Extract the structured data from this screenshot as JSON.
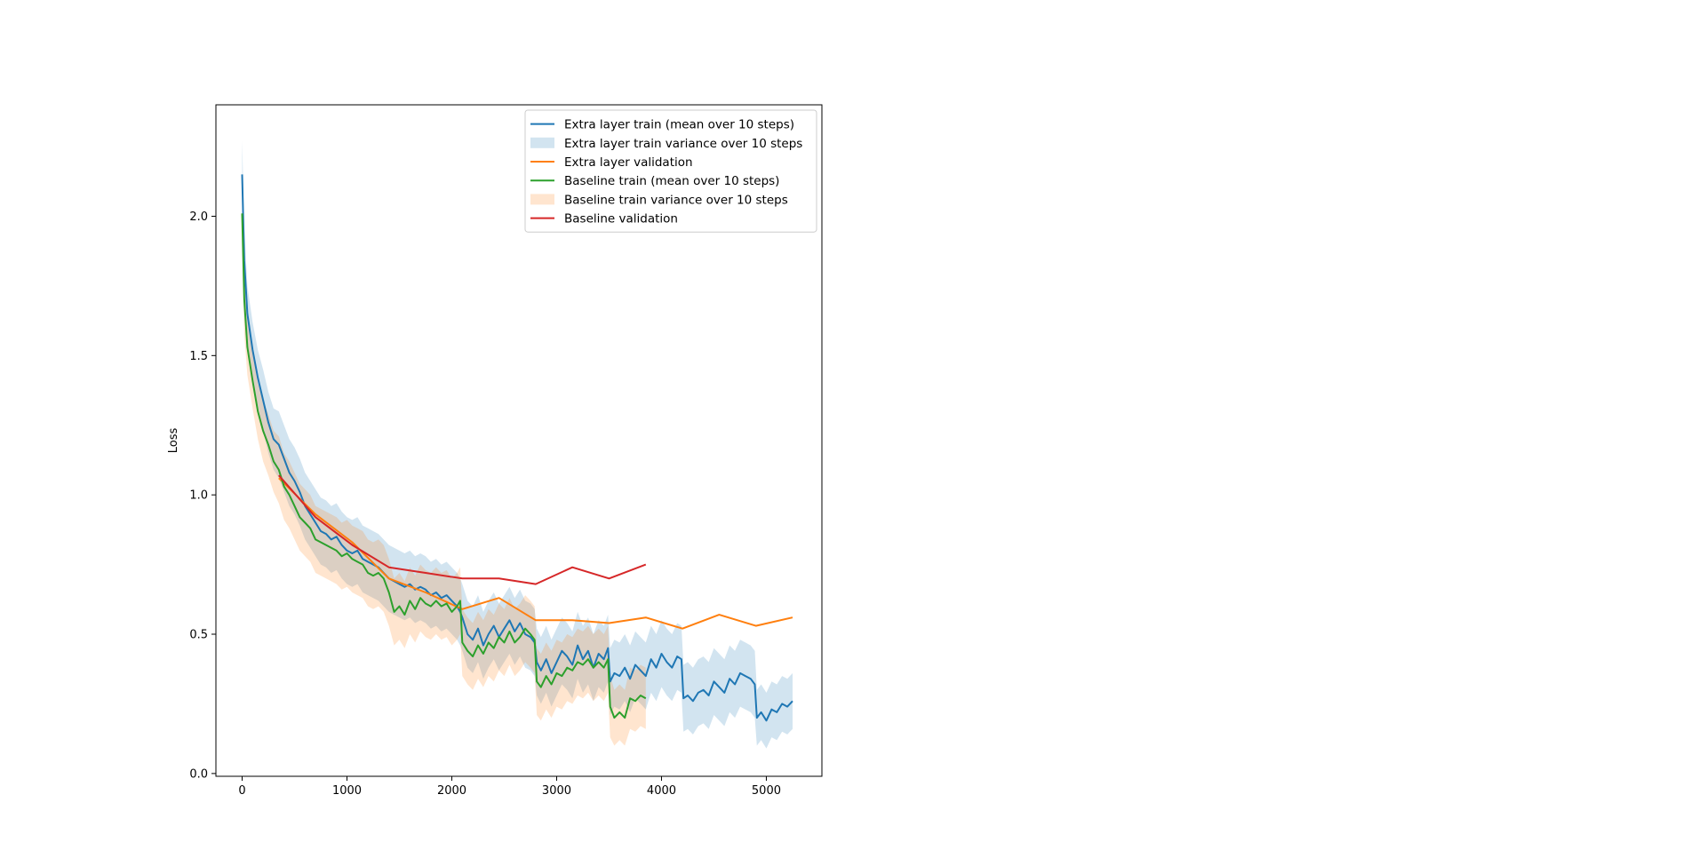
{
  "chart_data": {
    "type": "line",
    "title": "",
    "xlabel": "",
    "ylabel": "Loss",
    "xlim": [
      -250,
      5530
    ],
    "ylim": [
      -0.01,
      2.4
    ],
    "xticks": [
      0,
      1000,
      2000,
      3000,
      4000,
      5000
    ],
    "xtick_labels": [
      "0",
      "1000",
      "2000",
      "3000",
      "4000",
      "5000"
    ],
    "yticks": [
      0.0,
      0.5,
      1.0,
      1.5,
      2.0
    ],
    "ytick_labels": [
      "0.0",
      "0.5",
      "1.0",
      "1.5",
      "2.0"
    ],
    "grid": false,
    "legend_position": "top-right",
    "series": [
      {
        "name": "Extra layer train (mean over 10 steps)",
        "kind": "line",
        "color": "#1f77b4",
        "x": [
          0,
          20,
          50,
          100,
          150,
          200,
          250,
          300,
          350,
          400,
          450,
          500,
          550,
          600,
          650,
          700,
          750,
          800,
          850,
          900,
          950,
          1000,
          1050,
          1100,
          1150,
          1200,
          1250,
          1300,
          1350,
          1400,
          1450,
          1500,
          1550,
          1600,
          1650,
          1700,
          1750,
          1800,
          1850,
          1900,
          1950,
          2000,
          2050,
          2080,
          2100,
          2150,
          2200,
          2250,
          2300,
          2350,
          2400,
          2450,
          2500,
          2550,
          2600,
          2650,
          2700,
          2750,
          2790,
          2810,
          2850,
          2900,
          2950,
          3000,
          3050,
          3100,
          3150,
          3200,
          3250,
          3300,
          3350,
          3400,
          3450,
          3490,
          3510,
          3550,
          3600,
          3650,
          3700,
          3750,
          3800,
          3850,
          3900,
          3950,
          4000,
          4050,
          4100,
          4150,
          4190,
          4210,
          4250,
          4300,
          4350,
          4400,
          4450,
          4500,
          4550,
          4600,
          4650,
          4700,
          4750,
          4800,
          4850,
          4890,
          4910,
          4950,
          5000,
          5050,
          5100,
          5150,
          5200,
          5250
        ],
        "y": [
          2.15,
          1.84,
          1.65,
          1.52,
          1.42,
          1.34,
          1.26,
          1.2,
          1.18,
          1.13,
          1.08,
          1.05,
          1.01,
          0.96,
          0.93,
          0.9,
          0.87,
          0.86,
          0.84,
          0.85,
          0.82,
          0.8,
          0.79,
          0.8,
          0.77,
          0.76,
          0.75,
          0.74,
          0.72,
          0.7,
          0.69,
          0.68,
          0.67,
          0.68,
          0.66,
          0.67,
          0.66,
          0.64,
          0.65,
          0.63,
          0.64,
          0.62,
          0.6,
          0.58,
          0.56,
          0.5,
          0.48,
          0.52,
          0.46,
          0.5,
          0.53,
          0.49,
          0.52,
          0.55,
          0.51,
          0.54,
          0.5,
          0.49,
          0.47,
          0.4,
          0.37,
          0.41,
          0.36,
          0.4,
          0.44,
          0.42,
          0.39,
          0.46,
          0.41,
          0.44,
          0.38,
          0.43,
          0.41,
          0.45,
          0.33,
          0.36,
          0.35,
          0.38,
          0.34,
          0.39,
          0.37,
          0.35,
          0.41,
          0.38,
          0.43,
          0.4,
          0.38,
          0.42,
          0.41,
          0.27,
          0.28,
          0.26,
          0.29,
          0.3,
          0.28,
          0.33,
          0.31,
          0.29,
          0.34,
          0.32,
          0.36,
          0.35,
          0.34,
          0.32,
          0.2,
          0.22,
          0.19,
          0.23,
          0.22,
          0.25,
          0.24,
          0.26
        ]
      },
      {
        "name": "Extra layer train variance over 10 steps",
        "kind": "band",
        "color": "#1f77b4",
        "opacity": 0.2,
        "x": [
          0,
          20,
          50,
          100,
          150,
          200,
          250,
          300,
          350,
          400,
          450,
          500,
          550,
          600,
          650,
          700,
          750,
          800,
          850,
          900,
          950,
          1000,
          1050,
          1100,
          1150,
          1200,
          1250,
          1300,
          1350,
          1400,
          1450,
          1500,
          1550,
          1600,
          1650,
          1700,
          1750,
          1800,
          1850,
          1900,
          1950,
          2000,
          2050,
          2080,
          2100,
          2150,
          2200,
          2250,
          2300,
          2350,
          2400,
          2450,
          2500,
          2550,
          2600,
          2650,
          2700,
          2750,
          2790,
          2810,
          2850,
          2900,
          2950,
          3000,
          3050,
          3100,
          3150,
          3200,
          3250,
          3300,
          3350,
          3400,
          3450,
          3490,
          3510,
          3550,
          3600,
          3650,
          3700,
          3750,
          3800,
          3850,
          3900,
          3950,
          4000,
          4050,
          4100,
          4150,
          4190,
          4210,
          4250,
          4300,
          4350,
          4400,
          4450,
          4500,
          4550,
          4600,
          4650,
          4700,
          4750,
          4800,
          4850,
          4890,
          4910,
          4950,
          5000,
          5050,
          5100,
          5150,
          5200,
          5250
        ],
        "lower": [
          2.03,
          1.72,
          1.55,
          1.42,
          1.32,
          1.23,
          1.15,
          1.09,
          1.06,
          1.01,
          0.96,
          0.93,
          0.89,
          0.84,
          0.81,
          0.78,
          0.75,
          0.74,
          0.72,
          0.73,
          0.7,
          0.68,
          0.67,
          0.68,
          0.65,
          0.64,
          0.63,
          0.62,
          0.6,
          0.58,
          0.57,
          0.56,
          0.55,
          0.56,
          0.54,
          0.55,
          0.54,
          0.52,
          0.53,
          0.51,
          0.52,
          0.5,
          0.48,
          0.46,
          0.44,
          0.38,
          0.36,
          0.4,
          0.34,
          0.38,
          0.41,
          0.37,
          0.4,
          0.43,
          0.39,
          0.42,
          0.38,
          0.37,
          0.35,
          0.28,
          0.25,
          0.29,
          0.24,
          0.28,
          0.32,
          0.3,
          0.27,
          0.34,
          0.29,
          0.32,
          0.26,
          0.31,
          0.29,
          0.33,
          0.21,
          0.24,
          0.23,
          0.26,
          0.22,
          0.27,
          0.25,
          0.23,
          0.29,
          0.26,
          0.31,
          0.28,
          0.26,
          0.3,
          0.29,
          0.15,
          0.16,
          0.14,
          0.17,
          0.18,
          0.16,
          0.21,
          0.19,
          0.17,
          0.22,
          0.2,
          0.24,
          0.23,
          0.22,
          0.2,
          0.1,
          0.12,
          0.09,
          0.13,
          0.12,
          0.15,
          0.14,
          0.16
        ],
        "upper": [
          2.27,
          1.96,
          1.75,
          1.62,
          1.52,
          1.45,
          1.37,
          1.31,
          1.3,
          1.25,
          1.2,
          1.17,
          1.13,
          1.08,
          1.05,
          1.02,
          0.99,
          0.98,
          0.96,
          0.97,
          0.94,
          0.92,
          0.91,
          0.92,
          0.89,
          0.88,
          0.87,
          0.86,
          0.84,
          0.82,
          0.81,
          0.8,
          0.79,
          0.8,
          0.78,
          0.79,
          0.78,
          0.76,
          0.77,
          0.75,
          0.76,
          0.74,
          0.72,
          0.7,
          0.68,
          0.62,
          0.6,
          0.64,
          0.58,
          0.62,
          0.65,
          0.61,
          0.64,
          0.67,
          0.63,
          0.66,
          0.62,
          0.61,
          0.59,
          0.52,
          0.49,
          0.53,
          0.48,
          0.52,
          0.56,
          0.54,
          0.51,
          0.58,
          0.53,
          0.56,
          0.5,
          0.55,
          0.53,
          0.57,
          0.45,
          0.48,
          0.47,
          0.5,
          0.46,
          0.51,
          0.49,
          0.47,
          0.53,
          0.5,
          0.55,
          0.52,
          0.5,
          0.54,
          0.53,
          0.39,
          0.4,
          0.38,
          0.41,
          0.42,
          0.4,
          0.45,
          0.43,
          0.41,
          0.46,
          0.44,
          0.48,
          0.47,
          0.46,
          0.44,
          0.3,
          0.32,
          0.29,
          0.33,
          0.32,
          0.35,
          0.34,
          0.36
        ]
      },
      {
        "name": "Extra layer validation",
        "kind": "line",
        "color": "#ff7f0e",
        "x": [
          350,
          700,
          1050,
          1400,
          1750,
          2100,
          2450,
          2800,
          3150,
          3500,
          3850,
          4200,
          4550,
          4900,
          5250
        ],
        "y": [
          1.06,
          0.93,
          0.83,
          0.7,
          0.65,
          0.59,
          0.63,
          0.55,
          0.55,
          0.54,
          0.56,
          0.52,
          0.57,
          0.53,
          0.56
        ]
      },
      {
        "name": "Baseline train (mean over 10 steps)",
        "kind": "line",
        "color": "#2ca02c",
        "x": [
          0,
          20,
          50,
          100,
          150,
          200,
          250,
          300,
          350,
          400,
          450,
          500,
          550,
          600,
          650,
          700,
          750,
          800,
          850,
          900,
          950,
          1000,
          1050,
          1100,
          1150,
          1200,
          1250,
          1300,
          1350,
          1400,
          1450,
          1500,
          1550,
          1600,
          1650,
          1700,
          1750,
          1800,
          1850,
          1900,
          1950,
          2000,
          2050,
          2080,
          2100,
          2150,
          2200,
          2250,
          2300,
          2350,
          2400,
          2450,
          2500,
          2550,
          2600,
          2650,
          2700,
          2750,
          2790,
          2810,
          2850,
          2900,
          2950,
          3000,
          3050,
          3100,
          3150,
          3200,
          3250,
          3300,
          3350,
          3400,
          3450,
          3490,
          3510,
          3550,
          3600,
          3650,
          3700,
          3750,
          3800,
          3850
        ],
        "y": [
          2.01,
          1.7,
          1.53,
          1.41,
          1.3,
          1.23,
          1.18,
          1.12,
          1.09,
          1.03,
          1.0,
          0.96,
          0.92,
          0.9,
          0.88,
          0.84,
          0.83,
          0.82,
          0.81,
          0.8,
          0.78,
          0.79,
          0.77,
          0.76,
          0.75,
          0.72,
          0.71,
          0.72,
          0.7,
          0.65,
          0.58,
          0.6,
          0.57,
          0.62,
          0.59,
          0.63,
          0.61,
          0.6,
          0.62,
          0.6,
          0.61,
          0.58,
          0.6,
          0.62,
          0.47,
          0.44,
          0.42,
          0.46,
          0.43,
          0.47,
          0.45,
          0.49,
          0.47,
          0.51,
          0.47,
          0.49,
          0.52,
          0.5,
          0.48,
          0.33,
          0.31,
          0.35,
          0.32,
          0.36,
          0.35,
          0.38,
          0.37,
          0.4,
          0.39,
          0.41,
          0.38,
          0.4,
          0.38,
          0.41,
          0.24,
          0.2,
          0.22,
          0.2,
          0.27,
          0.26,
          0.28,
          0.27
        ]
      },
      {
        "name": "Baseline train variance over 10 steps",
        "kind": "band",
        "color": "#ff7f0e",
        "opacity": 0.2,
        "x": [
          0,
          20,
          50,
          100,
          150,
          200,
          250,
          300,
          350,
          400,
          450,
          500,
          550,
          600,
          650,
          700,
          750,
          800,
          850,
          900,
          950,
          1000,
          1050,
          1100,
          1150,
          1200,
          1250,
          1300,
          1350,
          1400,
          1450,
          1500,
          1550,
          1600,
          1650,
          1700,
          1750,
          1800,
          1850,
          1900,
          1950,
          2000,
          2050,
          2080,
          2100,
          2150,
          2200,
          2250,
          2300,
          2350,
          2400,
          2450,
          2500,
          2550,
          2600,
          2650,
          2700,
          2750,
          2790,
          2810,
          2850,
          2900,
          2950,
          3000,
          3050,
          3100,
          3150,
          3200,
          3250,
          3300,
          3350,
          3400,
          3450,
          3490,
          3510,
          3550,
          3600,
          3650,
          3700,
          3750,
          3800,
          3850
        ],
        "lower": [
          1.89,
          1.58,
          1.43,
          1.31,
          1.2,
          1.12,
          1.07,
          1.01,
          0.97,
          0.91,
          0.88,
          0.84,
          0.8,
          0.78,
          0.76,
          0.72,
          0.71,
          0.7,
          0.69,
          0.68,
          0.66,
          0.67,
          0.65,
          0.64,
          0.63,
          0.6,
          0.59,
          0.6,
          0.58,
          0.53,
          0.46,
          0.48,
          0.45,
          0.5,
          0.47,
          0.51,
          0.49,
          0.48,
          0.5,
          0.48,
          0.49,
          0.46,
          0.48,
          0.5,
          0.35,
          0.32,
          0.3,
          0.34,
          0.31,
          0.35,
          0.33,
          0.37,
          0.35,
          0.39,
          0.35,
          0.37,
          0.4,
          0.38,
          0.36,
          0.21,
          0.19,
          0.23,
          0.2,
          0.24,
          0.23,
          0.26,
          0.25,
          0.28,
          0.27,
          0.29,
          0.26,
          0.28,
          0.26,
          0.29,
          0.13,
          0.1,
          0.12,
          0.1,
          0.16,
          0.15,
          0.17,
          0.16
        ],
        "upper": [
          2.13,
          1.82,
          1.63,
          1.51,
          1.4,
          1.34,
          1.29,
          1.23,
          1.21,
          1.15,
          1.12,
          1.08,
          1.04,
          1.02,
          1.0,
          0.96,
          0.95,
          0.94,
          0.93,
          0.92,
          0.9,
          0.91,
          0.89,
          0.88,
          0.87,
          0.84,
          0.83,
          0.84,
          0.82,
          0.77,
          0.7,
          0.72,
          0.69,
          0.74,
          0.71,
          0.75,
          0.73,
          0.72,
          0.74,
          0.72,
          0.73,
          0.7,
          0.72,
          0.74,
          0.59,
          0.56,
          0.54,
          0.58,
          0.55,
          0.59,
          0.57,
          0.61,
          0.59,
          0.63,
          0.59,
          0.61,
          0.64,
          0.62,
          0.6,
          0.45,
          0.43,
          0.47,
          0.44,
          0.48,
          0.47,
          0.5,
          0.49,
          0.52,
          0.51,
          0.53,
          0.5,
          0.52,
          0.5,
          0.53,
          0.35,
          0.3,
          0.32,
          0.3,
          0.38,
          0.37,
          0.39,
          0.38
        ]
      },
      {
        "name": "Baseline validation",
        "kind": "line",
        "color": "#d62728",
        "x": [
          350,
          700,
          1050,
          1400,
          1750,
          2100,
          2450,
          2800,
          3150,
          3500,
          3850
        ],
        "y": [
          1.07,
          0.92,
          0.82,
          0.74,
          0.72,
          0.7,
          0.7,
          0.68,
          0.74,
          0.7,
          0.75
        ]
      }
    ]
  }
}
